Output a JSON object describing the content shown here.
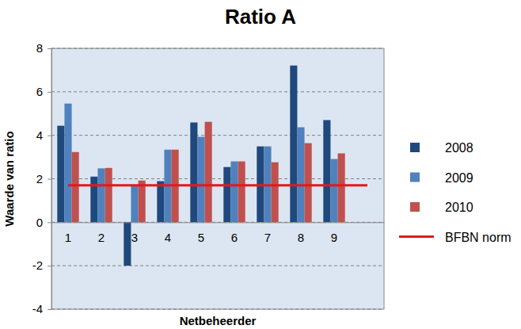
{
  "chart_data": {
    "type": "bar",
    "title": "Ratio A",
    "x_label": "Netbeheerder",
    "y_label": "Waarde van ratio",
    "categories": [
      "1",
      "2",
      "3",
      "4",
      "5",
      "6",
      "7",
      "8",
      "9",
      null
    ],
    "series": [
      {
        "name": "2008",
        "color": "#1F497D",
        "values": [
          4.44,
          2.1,
          -2.0,
          1.89,
          4.59,
          2.54,
          3.49,
          7.21,
          4.7,
          null
        ]
      },
      {
        "name": "2009",
        "color": "#4F81BD",
        "values": [
          5.46,
          2.48,
          1.67,
          3.34,
          3.93,
          2.8,
          3.49,
          4.37,
          2.91,
          null
        ]
      },
      {
        "name": "2010",
        "color": "#C0504D",
        "values": [
          3.23,
          2.5,
          1.92,
          3.34,
          4.62,
          2.8,
          2.76,
          3.64,
          3.17,
          null
        ]
      },
      {
        "name": "BFBN norm",
        "type": "line",
        "color": "#E3191C",
        "values": [
          1.7,
          1.7,
          1.7,
          1.7,
          1.7,
          1.7,
          1.7,
          1.7,
          1.7,
          1.7
        ]
      }
    ],
    "ylim": [
      -4,
      8
    ],
    "yticks": [
      -4,
      -2,
      0,
      2,
      4,
      6,
      8
    ],
    "grid": true,
    "legend": "right"
  }
}
